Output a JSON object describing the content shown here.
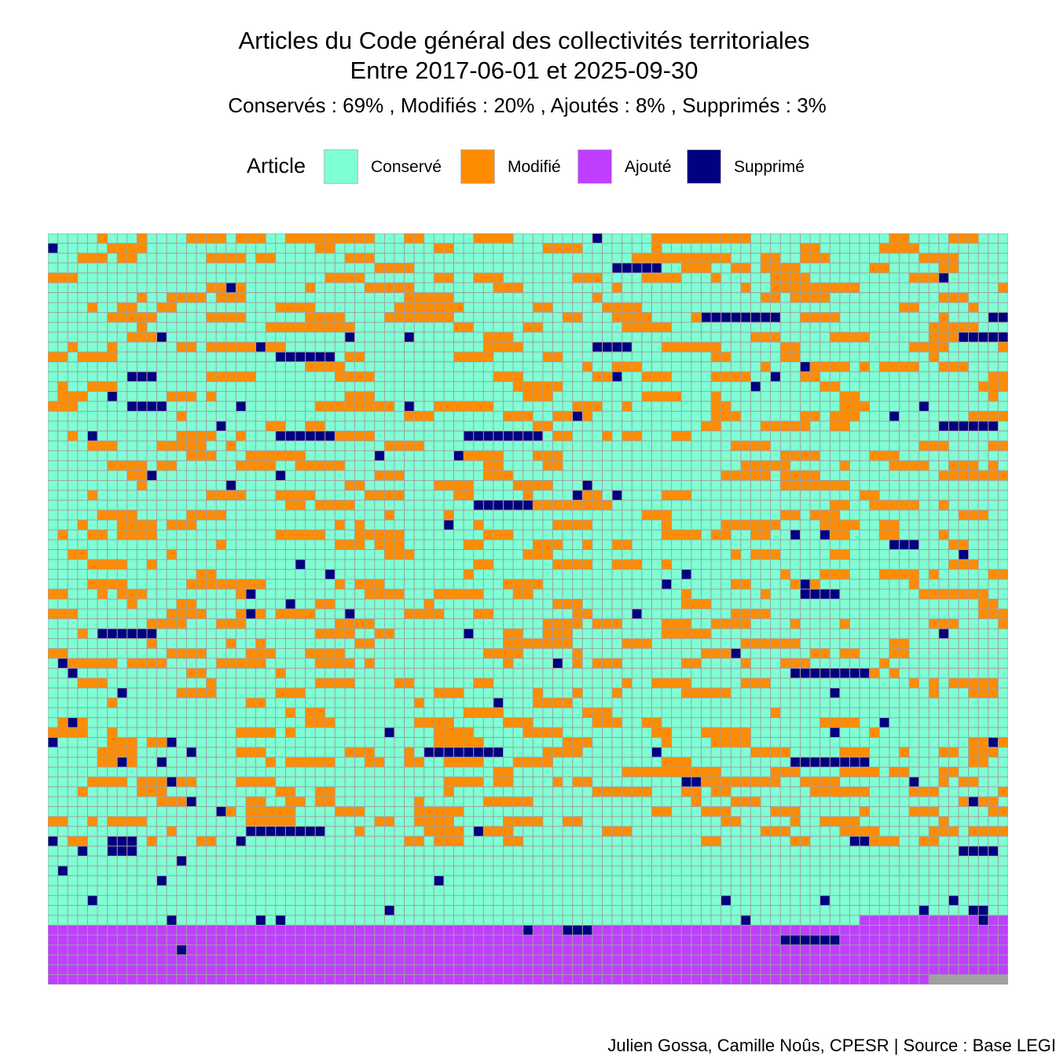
{
  "title_line1": "Articles du Code général des collectivités territoriales",
  "title_line2": "Entre 2017-06-01 et 2025-09-30",
  "subtitle": "Conservés :  69% , Modifiés :  20% , Ajoutés :  8% , Supprimés :  3%",
  "caption": "Julien Gossa, Camille Noûs, CPESR  |  Source : Base LEGI",
  "colors": {
    "Conservé": "#7fffd4",
    "Modifié": "#ff8c00",
    "Ajouté": "#bf3eff",
    "Supprimé": "#000080",
    "gridline": "#a0a0a0"
  },
  "chart_data": {
    "type": "waffle",
    "title": "Articles du Code général des collectivités territoriales",
    "subtitle": "Entre 2017-06-01 et 2025-09-30",
    "legend": {
      "title": "Article",
      "placement": "top",
      "entries": [
        "Conservé",
        "Modifié",
        "Ajouté",
        "Supprimé"
      ]
    },
    "categories": [
      "Conservé",
      "Modifié",
      "Ajouté",
      "Supprimé"
    ],
    "percentages": [
      69,
      20,
      8,
      3
    ],
    "grid": {
      "columns": 97,
      "rows": 76,
      "total_cells": 7364
    },
    "series": [
      {
        "name": "Conservé",
        "cells": 5081
      },
      {
        "name": "Modifié",
        "cells": 1473
      },
      {
        "name": "Ajouté",
        "cells": 589
      },
      {
        "name": "Supprimé",
        "cells": 221
      }
    ]
  }
}
